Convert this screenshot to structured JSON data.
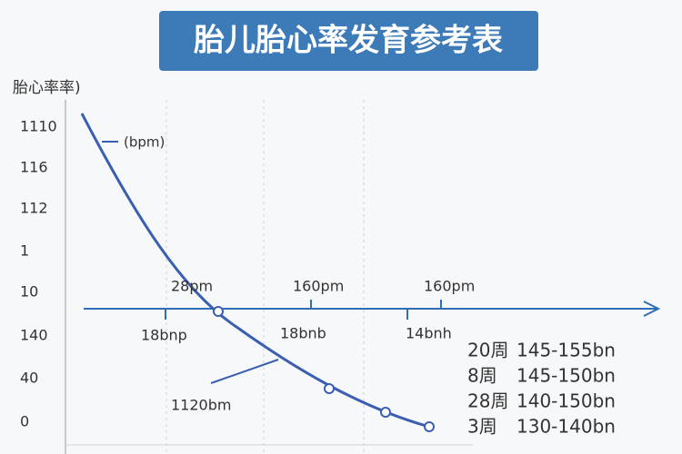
{
  "header": {
    "title": "胎儿胎心率发育参考表"
  },
  "axis": {
    "label": "胎心率率)",
    "ticks": [
      "1110",
      "116",
      "112",
      "1",
      "10",
      "140",
      "40",
      "0"
    ]
  },
  "legend": {
    "label": "(bpm)"
  },
  "annotations": [
    {
      "text": "28pm"
    },
    {
      "text": "160pm"
    },
    {
      "text": "160pm"
    },
    {
      "text": "18bnp"
    },
    {
      "text": "18bnb"
    },
    {
      "text": "14bnh"
    },
    {
      "text": "1120bm"
    }
  ],
  "table": {
    "rows": [
      [
        "20周",
        "145-155bn"
      ],
      [
        "8周",
        "145-150bn"
      ],
      [
        "28周",
        "140-150bn"
      ],
      [
        "3周",
        "130-140bn"
      ]
    ]
  }
}
